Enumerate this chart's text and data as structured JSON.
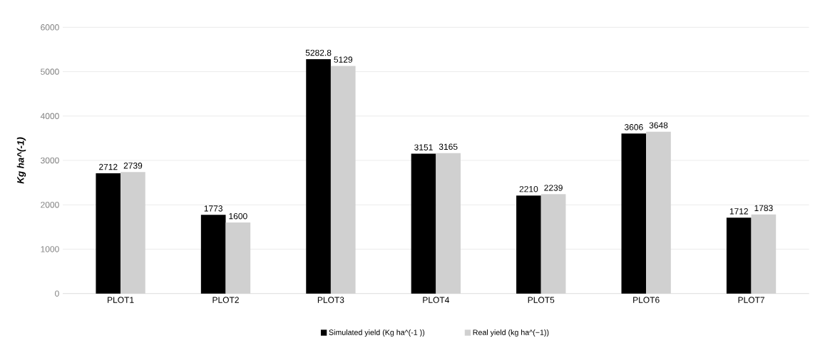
{
  "chart_data": {
    "type": "bar",
    "ylabel": "Kg ha^(-1)",
    "categories": [
      "PLOT1",
      "PLOT2",
      "PLOT3",
      "PLOT4",
      "PLOT5",
      "PLOT6",
      "PLOT7"
    ],
    "series": [
      {
        "name": "Simulated yield (Kg ha^(-1 ))",
        "color": "#000000",
        "values": [
          2712,
          1773,
          5282.8,
          3151,
          2210,
          3606,
          1712
        ]
      },
      {
        "name": "Real yield (kg ha^(−1))",
        "color": "#d0d0d0",
        "values": [
          2739,
          1600,
          5129,
          3165,
          2239,
          3648,
          1783
        ]
      }
    ],
    "ylim": [
      0,
      6000
    ],
    "yticks": [
      0,
      1000,
      2000,
      3000,
      4000,
      5000,
      6000
    ],
    "grid": "y",
    "legend": "bottom",
    "data_labels": true
  }
}
